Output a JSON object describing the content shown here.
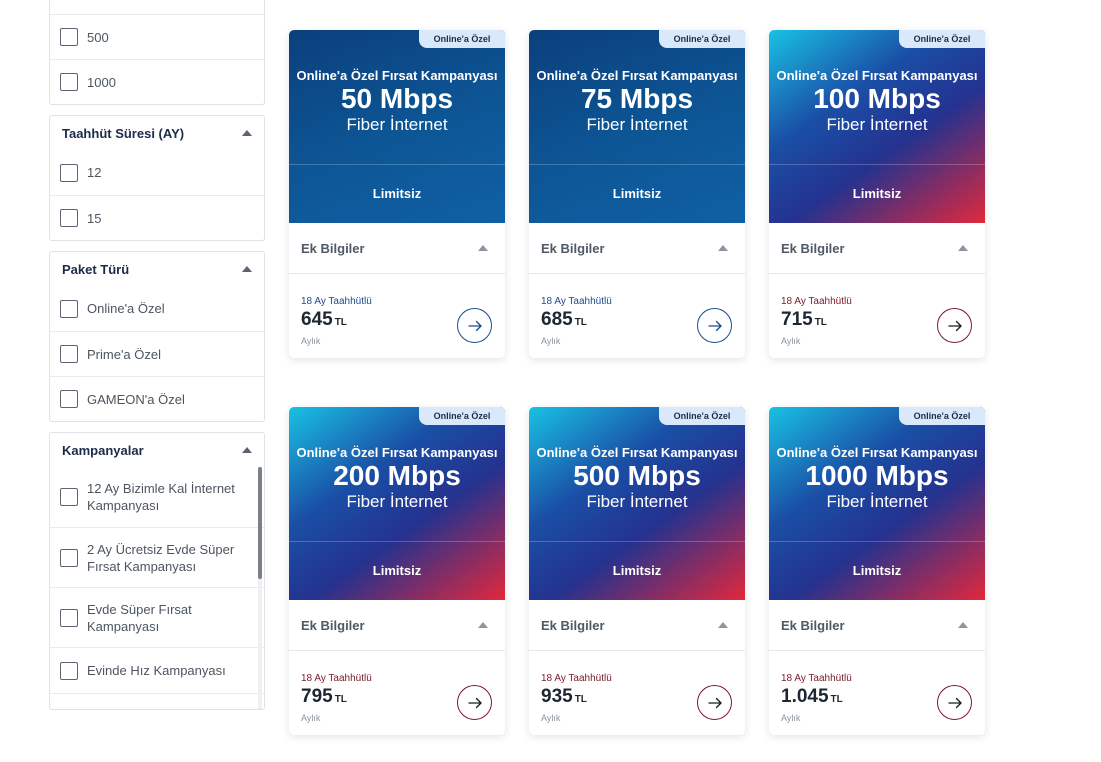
{
  "filters": {
    "speed": {
      "options": [
        "500",
        "1000"
      ]
    },
    "commitment": {
      "title": "Taahhüt Süresi (AY)",
      "options": [
        "12",
        "15"
      ]
    },
    "package_type": {
      "title": "Paket Türü",
      "options": [
        "Online'a Özel",
        "Prime'a Özel",
        "GAMEON'a Özel"
      ]
    },
    "campaigns": {
      "title": "Kampanyalar",
      "options": [
        "12 Ay Bizimle Kal İnternet Kampanyası",
        "2 Ay Ücretsiz Evde Süper Fırsat Kampanyası",
        "Evde Süper Fırsat Kampanyası",
        "Evinde Hız Kampanyası"
      ]
    }
  },
  "cards": [
    {
      "badge": "Online'a Özel",
      "subtitle": "Online'a Özel Fırsat Kampanyası",
      "speed": "50 Mbps",
      "type": "Fiber İnternet",
      "limit": "Limitsiz",
      "info_label": "Ek Bilgiler",
      "commitment": "18 Ay Taahhütlü",
      "price": "645",
      "currency": "TL",
      "period": "Aylık",
      "theme": "blue"
    },
    {
      "badge": "Online'a Özel",
      "subtitle": "Online'a Özel Fırsat Kampanyası",
      "speed": "75 Mbps",
      "type": "Fiber İnternet",
      "limit": "Limitsiz",
      "info_label": "Ek Bilgiler",
      "commitment": "18 Ay Taahhütlü",
      "price": "685",
      "currency": "TL",
      "period": "Aylık",
      "theme": "blue"
    },
    {
      "badge": "Online'a Özel",
      "subtitle": "Online'a Özel Fırsat Kampanyası",
      "speed": "100 Mbps",
      "type": "Fiber İnternet",
      "limit": "Limitsiz",
      "info_label": "Ek Bilgiler",
      "commitment": "18 Ay Taahhütlü",
      "price": "715",
      "currency": "TL",
      "period": "Aylık",
      "theme": "mix"
    },
    {
      "badge": "Online'a Özel",
      "subtitle": "Online'a Özel Fırsat Kampanyası",
      "speed": "200 Mbps",
      "type": "Fiber İnternet",
      "limit": "Limitsiz",
      "info_label": "Ek Bilgiler",
      "commitment": "18 Ay Taahhütlü",
      "price": "795",
      "currency": "TL",
      "period": "Aylık",
      "theme": "mix"
    },
    {
      "badge": "Online'a Özel",
      "subtitle": "Online'a Özel Fırsat Kampanyası",
      "speed": "500 Mbps",
      "type": "Fiber İnternet",
      "limit": "Limitsiz",
      "info_label": "Ek Bilgiler",
      "commitment": "18 Ay Taahhütlü",
      "price": "935",
      "currency": "TL",
      "period": "Aylık",
      "theme": "mix"
    },
    {
      "badge": "Online'a Özel",
      "subtitle": "Online'a Özel Fırsat Kampanyası",
      "speed": "1000 Mbps",
      "type": "Fiber İnternet",
      "limit": "Limitsiz",
      "info_label": "Ek Bilgiler",
      "commitment": "18 Ay Taahhütlü",
      "price": "1.045",
      "currency": "TL",
      "period": "Aylık",
      "theme": "mix"
    }
  ],
  "colors": {
    "blue_accent": "#1a4c8c",
    "red_accent": "#7a1a2a",
    "badge_bg": "#d9e9fb"
  },
  "icons": {
    "card_action": "arrow-right-icon",
    "collapse": "caret-up-icon",
    "checkbox": "checkbox-icon"
  }
}
